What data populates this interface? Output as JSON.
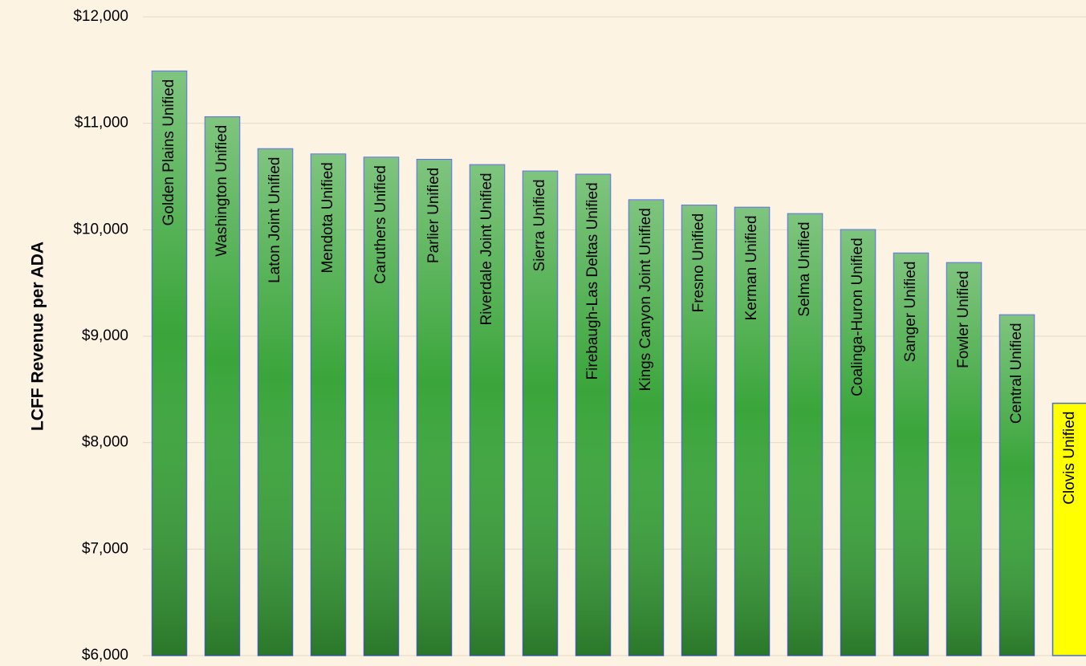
{
  "chart_data": {
    "type": "bar",
    "y_label": "LCFF Revenue per ADA",
    "categories": [
      "Golden Plains Unified",
      "Washington Unified",
      "Laton Joint Unified",
      "Mendota Unified",
      "Caruthers Unified",
      "Parlier Unified",
      "Riverdale Joint Unified",
      "Sierra Unified",
      "Firebaugh-Las Deltas Unified",
      "Kings Canyon Joint Unified",
      "Fresno Unified",
      "Kerman Unified",
      "Selma Unified",
      "Coalinga-Huron Unified",
      "Sanger Unified",
      "Fowler Unified",
      "Central Unified",
      "Clovis Unified"
    ],
    "values": [
      11490,
      11060,
      10760,
      10710,
      10680,
      10660,
      10610,
      10550,
      10520,
      10280,
      10230,
      10210,
      10150,
      10000,
      9780,
      9690,
      9200,
      8370
    ],
    "colors": [
      "#3aa53a",
      "#3aa53a",
      "#3aa53a",
      "#3aa53a",
      "#3aa53a",
      "#3aa53a",
      "#3aa53a",
      "#3aa53a",
      "#3aa53a",
      "#3aa53a",
      "#3aa53a",
      "#3aa53a",
      "#3aa53a",
      "#3aa53a",
      "#3aa53a",
      "#3aa53a",
      "#3aa53a",
      "#ffff00"
    ],
    "ylim": [
      6000,
      12000
    ],
    "yticks": [
      {
        "value": 6000,
        "label": "$6,000"
      },
      {
        "value": 7000,
        "label": "$7,000"
      },
      {
        "value": 8000,
        "label": "$8,000"
      },
      {
        "value": 9000,
        "label": "$9,000"
      },
      {
        "value": 10000,
        "label": "$10,000"
      },
      {
        "value": 11000,
        "label": "$11,000"
      },
      {
        "value": 12000,
        "label": "$12,000"
      }
    ],
    "grid": true
  }
}
